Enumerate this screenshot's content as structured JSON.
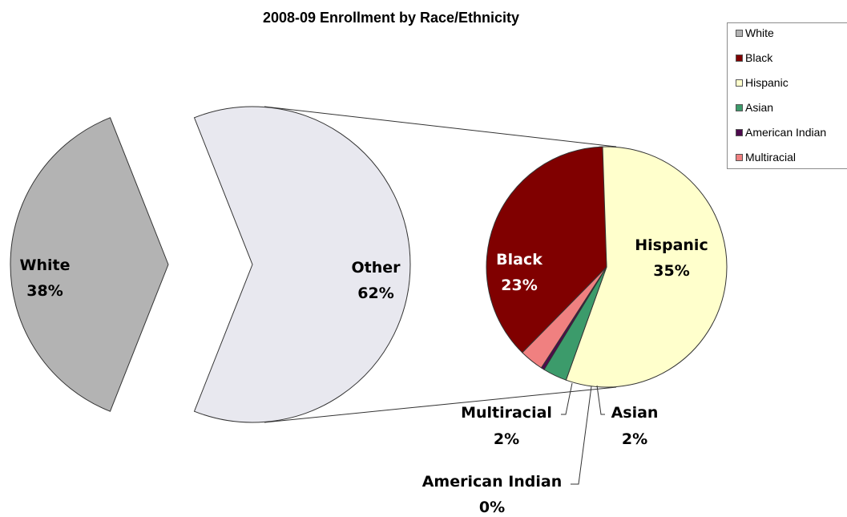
{
  "chart_data": {
    "type": "pie",
    "title": "2008-09 Enrollment by Race/Ethnicity",
    "main_pie": [
      {
        "label": "White",
        "value": 38,
        "value_label": "38%",
        "color": "#b3b3b3"
      },
      {
        "label": "Other",
        "value": 62,
        "value_label": "62%",
        "color": "#e8e8ef"
      }
    ],
    "breakout_pie": [
      {
        "label": "Hispanic",
        "value": 35,
        "value_label": "35%",
        "color": "#ffffcc"
      },
      {
        "label": "Asian",
        "value": 2,
        "value_label": "2%",
        "color": "#3c9b6b"
      },
      {
        "label": "American Indian",
        "value": 0,
        "value_label": "0%",
        "color": "#4d0a4d"
      },
      {
        "label": "Multiracial",
        "value": 2,
        "value_label": "2%",
        "color": "#f08080"
      },
      {
        "label": "Black",
        "value": 23,
        "value_label": "23%",
        "color": "#800000"
      }
    ],
    "legend": [
      {
        "label": "White",
        "color": "#b3b3b3"
      },
      {
        "label": "Black",
        "color": "#800000"
      },
      {
        "label": "Hispanic",
        "color": "#ffffcc"
      },
      {
        "label": "Asian",
        "color": "#3c9b6b"
      },
      {
        "label": "American Indian",
        "color": "#4d0a4d"
      },
      {
        "label": "Multiracial",
        "color": "#f08080"
      }
    ],
    "legend_position": "top-right"
  }
}
